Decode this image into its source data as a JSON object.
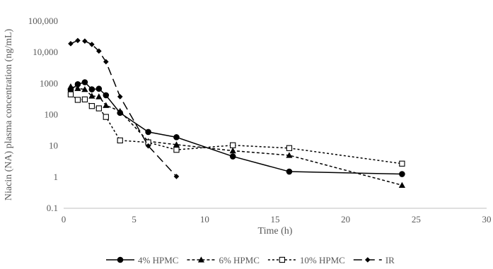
{
  "chart_data": {
    "type": "line",
    "title": "",
    "xlabel": "Time (h)",
    "ylabel": "Niacin (NA) plasma concentration (ng/mL)",
    "xlim": [
      0,
      30
    ],
    "x_ticks": [
      0,
      5,
      10,
      15,
      20,
      25,
      30
    ],
    "ylim": [
      0.1,
      100000
    ],
    "y_scale": "log",
    "y_ticks": [
      0.1,
      1,
      10,
      100,
      1000,
      10000,
      100000
    ],
    "y_tick_labels": [
      "0.1",
      "1",
      "10",
      "100",
      "1000",
      "10,000",
      "100,000"
    ],
    "grid": false,
    "legend_position": "bottom",
    "series": [
      {
        "name": "4% HPMC",
        "line": "solid",
        "marker": "circle",
        "color": "#000000",
        "x": [
          0.5,
          1,
          1.5,
          2,
          2.5,
          3,
          4,
          6,
          8,
          12,
          16,
          24
        ],
        "y": [
          620,
          950,
          1100,
          650,
          680,
          420,
          115,
          28,
          19,
          4.6,
          1.5,
          1.25
        ]
      },
      {
        "name": "6% HPMC",
        "line": "dashed",
        "marker": "triangle",
        "color": "#000000",
        "x": [
          0.5,
          1,
          1.5,
          2,
          2.5,
          3,
          4,
          6,
          8,
          12,
          16,
          24
        ],
        "y": [
          800,
          700,
          650,
          400,
          380,
          200,
          130,
          14,
          11,
          7,
          5,
          0.55
        ]
      },
      {
        "name": "10% HPMC",
        "line": "short-dashed",
        "marker": "open-square",
        "color": "#000000",
        "x": [
          0.5,
          1,
          1.5,
          2,
          2.5,
          3,
          4,
          6,
          8,
          12,
          16,
          24
        ],
        "y": [
          450,
          300,
          310,
          190,
          160,
          85,
          15,
          13,
          7.5,
          10.5,
          8.5,
          2.7
        ]
      },
      {
        "name": "IR",
        "line": "long-dashed",
        "marker": "diamond",
        "color": "#000000",
        "x": [
          0.5,
          1,
          1.5,
          2,
          2.5,
          3,
          4,
          6,
          8
        ],
        "y": [
          19000,
          24000,
          23000,
          18000,
          11000,
          5000,
          380,
          10,
          1.05
        ]
      }
    ]
  }
}
